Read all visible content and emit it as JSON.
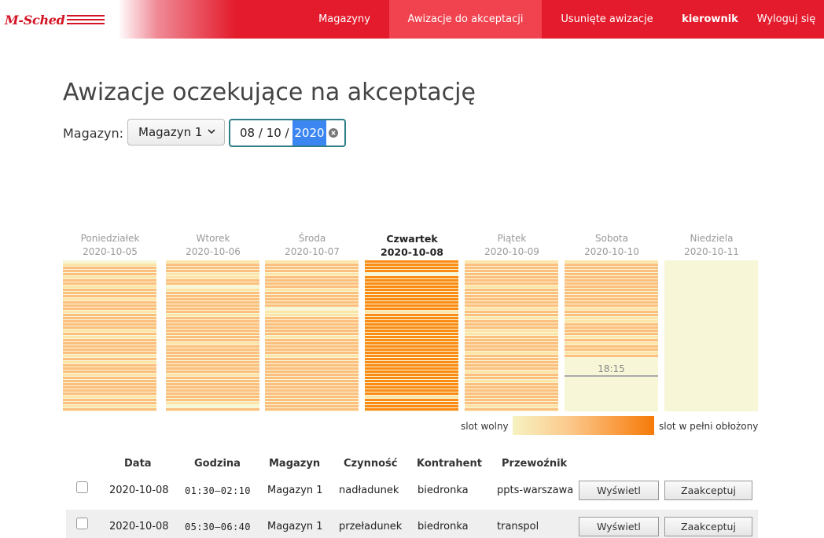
{
  "app": {
    "logo_text": "M-Sched",
    "nav": [
      {
        "label": "Magazyny"
      },
      {
        "label": "Awizacje do akceptacji"
      },
      {
        "label": "Usunięte awizacje"
      },
      {
        "label": "kierownik"
      },
      {
        "label": "Wyloguj się"
      }
    ]
  },
  "page": {
    "title": "Awizacje oczekujące na akceptację",
    "filter_label": "Magazyn:",
    "warehouse_select": "Magazyn 1",
    "date": {
      "month": "08",
      "sep1": " / ",
      "day": "10",
      "sep2": " / ",
      "year": "2020"
    }
  },
  "calendar": {
    "days": [
      {
        "name": "Poniedziałek",
        "date": "2020-10-05"
      },
      {
        "name": "Wtorek",
        "date": "2020-10-06"
      },
      {
        "name": "Środa",
        "date": "2020-10-07"
      },
      {
        "name": "Czwartek",
        "date": "2020-10-08"
      },
      {
        "name": "Piątek",
        "date": "2020-10-09"
      },
      {
        "name": "Sobota",
        "date": "2020-10-10"
      },
      {
        "name": "Niedziela",
        "date": "2020-10-11"
      }
    ],
    "current_time": "18:15",
    "colors": {
      "free": "#f7f7d8",
      "light": "#fde4a8",
      "medium": "#fdbf7e",
      "heavy": "#fb8b14",
      "full": "#f57a08"
    },
    "legend_left": "slot wolny",
    "legend_right": "slot w pełni obłożony"
  },
  "table": {
    "headers": [
      "Data",
      "Godzina",
      "Magazyn",
      "Czynność",
      "Kontrahent",
      "Przewoźnik"
    ],
    "rows": [
      {
        "date": "2020-10-08",
        "time": "01:30–02:10",
        "warehouse": "Magazyn 1",
        "activity": "nadładunek",
        "contractor": "biedronka",
        "carrier": "ppts-warszawa",
        "view": "Wyświetl",
        "accept": "Zaakceptuj"
      },
      {
        "date": "2020-10-08",
        "time": "05:30–06:40",
        "warehouse": "Magazyn 1",
        "activity": "przeładunek",
        "contractor": "biedronka",
        "carrier": "transpol",
        "view": "Wyświetl",
        "accept": "Zaakceptuj"
      }
    ]
  }
}
